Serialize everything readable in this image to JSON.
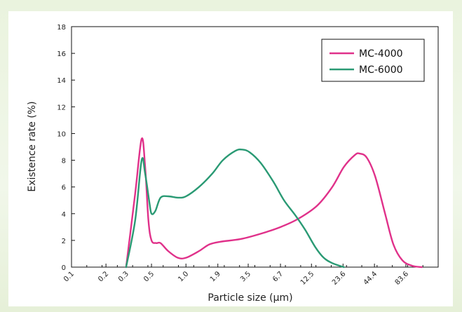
{
  "chart_data": {
    "type": "line",
    "xlabel": "Particle size (μm)",
    "ylabel": "Existence rate (%)",
    "ylim": [
      0,
      18
    ],
    "yticks": [
      0,
      2,
      4,
      6,
      8,
      10,
      12,
      14,
      16,
      18
    ],
    "x_tick_labels": [
      "0.1",
      "0.2",
      "0.3",
      "0.5",
      "1.0",
      "1.9",
      "3.5",
      "6.7",
      "12.5",
      "23.6",
      "44.4",
      "83.6"
    ],
    "x_tick_values": [
      0.1,
      0.2,
      0.3,
      0.5,
      1.0,
      1.9,
      3.5,
      6.7,
      12.5,
      23.6,
      44.4,
      83.6
    ],
    "x_scale": "log",
    "xlim": [
      0.1,
      160
    ],
    "grid": false,
    "legend_position": "top-right",
    "series": [
      {
        "name": "MC-4000",
        "color": "#e0318a",
        "points": [
          [
            0.3,
            0
          ],
          [
            0.36,
            5.5
          ],
          [
            0.41,
            9.6
          ],
          [
            0.44,
            7.5
          ],
          [
            0.47,
            3.5
          ],
          [
            0.5,
            2.0
          ],
          [
            0.55,
            1.8
          ],
          [
            0.6,
            1.8
          ],
          [
            0.7,
            1.2
          ],
          [
            0.85,
            0.7
          ],
          [
            1.0,
            0.7
          ],
          [
            1.3,
            1.2
          ],
          [
            1.6,
            1.7
          ],
          [
            2.0,
            1.9
          ],
          [
            3.0,
            2.1
          ],
          [
            4.5,
            2.5
          ],
          [
            6.7,
            3.0
          ],
          [
            9.5,
            3.6
          ],
          [
            14.0,
            4.6
          ],
          [
            19.0,
            6.0
          ],
          [
            24.0,
            7.5
          ],
          [
            30.0,
            8.4
          ],
          [
            33.0,
            8.5
          ],
          [
            38.0,
            8.2
          ],
          [
            45.0,
            6.8
          ],
          [
            55.0,
            4.0
          ],
          [
            65.0,
            1.7
          ],
          [
            78.0,
            0.5
          ],
          [
            95.0,
            0.1
          ],
          [
            115.0,
            0
          ]
        ]
      },
      {
        "name": "MC-6000",
        "color": "#2a9a74",
        "points": [
          [
            0.3,
            0
          ],
          [
            0.36,
            3.5
          ],
          [
            0.41,
            8.0
          ],
          [
            0.44,
            7.0
          ],
          [
            0.48,
            4.8
          ],
          [
            0.5,
            4.0
          ],
          [
            0.54,
            4.2
          ],
          [
            0.6,
            5.2
          ],
          [
            0.7,
            5.3
          ],
          [
            0.85,
            5.2
          ],
          [
            1.0,
            5.3
          ],
          [
            1.3,
            6.0
          ],
          [
            1.7,
            7.0
          ],
          [
            2.1,
            8.0
          ],
          [
            2.7,
            8.7
          ],
          [
            3.1,
            8.8
          ],
          [
            3.6,
            8.6
          ],
          [
            4.5,
            7.8
          ],
          [
            5.8,
            6.4
          ],
          [
            7.2,
            5.0
          ],
          [
            9.0,
            3.9
          ],
          [
            11.0,
            2.8
          ],
          [
            13.5,
            1.5
          ],
          [
            16.0,
            0.7
          ],
          [
            19.0,
            0.3
          ],
          [
            24.0,
            0
          ]
        ]
      }
    ]
  }
}
